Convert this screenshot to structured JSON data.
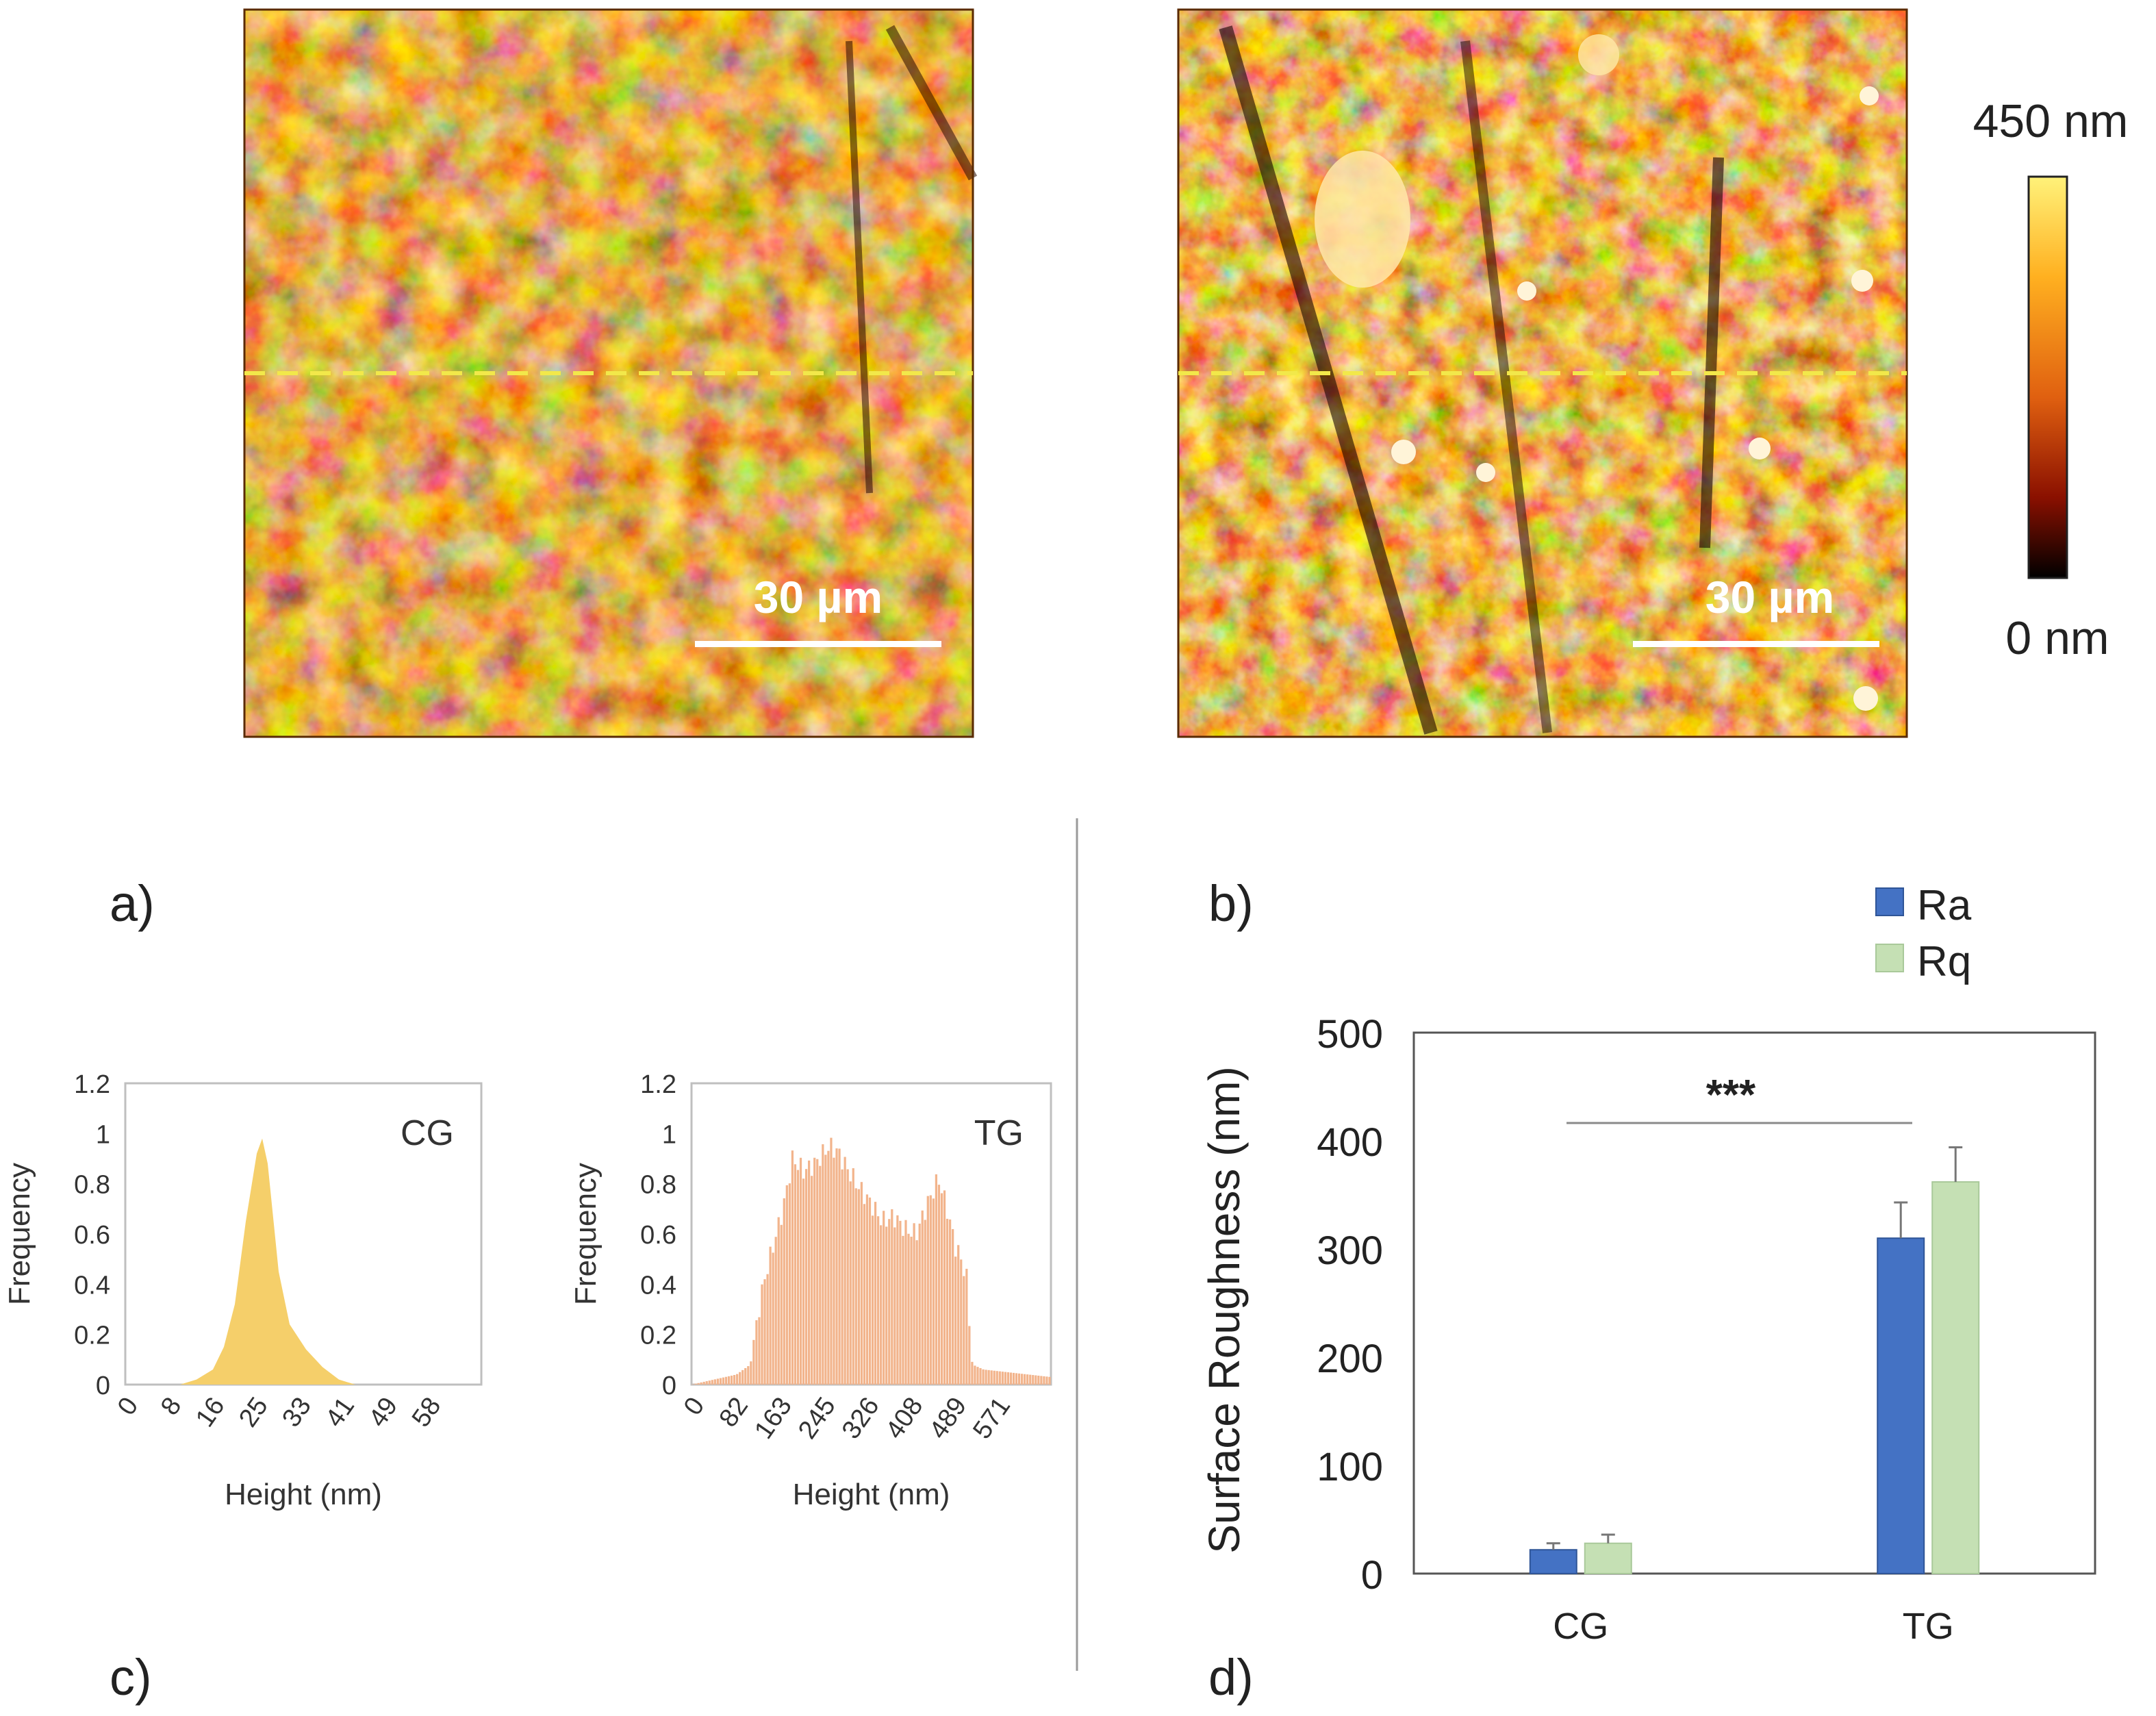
{
  "panels": {
    "a": "a)",
    "b": "b)",
    "c": "c)",
    "d": "d)"
  },
  "afm": {
    "scale_bar_label_left": "30 µm",
    "scale_bar_label_right": "30 µm",
    "colorbar_max": "450 nm",
    "colorbar_min": "0 nm"
  },
  "colors": {
    "afm_dark": "#2a0a00",
    "afm_mid": "#b8640a",
    "afm_bright": "#ffd890",
    "colorbar_top": "#fff27a",
    "colorbar_bottom": "#000000",
    "hist_cg": "#f5cf6a",
    "hist_tg": "#f2b48c",
    "ra": "#4472c4",
    "rq": "#c5e0b4"
  },
  "chart_data": [
    {
      "type": "area",
      "label": "CG",
      "xlabel": "Height (nm)",
      "ylabel": "Frequency",
      "xticks": [
        "0",
        "8",
        "16",
        "25",
        "33",
        "41",
        "49",
        "58"
      ],
      "yticks": [
        "0",
        "0.2",
        "0.4",
        "0.6",
        "0.8",
        "1",
        "1.2"
      ],
      "ylim": [
        0,
        1.2
      ],
      "xlim": [
        0,
        65
      ],
      "x": [
        0,
        10,
        13,
        16,
        18,
        20,
        22,
        24,
        25,
        26,
        28,
        30,
        33,
        36,
        39,
        42,
        65
      ],
      "y": [
        0,
        0,
        0.02,
        0.06,
        0.15,
        0.32,
        0.65,
        0.92,
        0.98,
        0.88,
        0.45,
        0.24,
        0.14,
        0.07,
        0.02,
        0,
        0
      ]
    },
    {
      "type": "bar",
      "label": "TG",
      "xlabel": "Height (nm)",
      "ylabel": "Frequency",
      "xticks": [
        "0",
        "82",
        "163",
        "245",
        "326",
        "408",
        "489",
        "571"
      ],
      "yticks": [
        "0",
        "0.2",
        "0.4",
        "0.6",
        "0.8",
        "1",
        "1.2"
      ],
      "ylim": [
        0,
        1.2
      ],
      "xlim": [
        0,
        640
      ],
      "x": [
        0,
        40,
        80,
        105,
        120,
        130,
        145,
        163,
        180,
        200,
        220,
        245,
        260,
        280,
        300,
        320,
        340,
        360,
        380,
        400,
        420,
        440,
        455,
        470,
        480,
        490,
        500,
        520,
        560,
        600,
        640
      ],
      "y": [
        0,
        0.02,
        0.04,
        0.08,
        0.3,
        0.42,
        0.55,
        0.7,
        0.9,
        0.85,
        0.88,
        0.95,
        0.93,
        0.85,
        0.78,
        0.72,
        0.65,
        0.67,
        0.62,
        0.6,
        0.72,
        0.82,
        0.7,
        0.55,
        0.5,
        0.42,
        0.08,
        0.06,
        0.05,
        0.04,
        0.03
      ]
    },
    {
      "type": "bar",
      "title": "",
      "xlabel": "",
      "ylabel": "Surface Roughness (nm)",
      "categories": [
        "CG",
        "TG"
      ],
      "ylim": [
        0,
        500
      ],
      "yticks": [
        "0",
        "100",
        "200",
        "300",
        "400",
        "500"
      ],
      "series": [
        {
          "name": "Ra",
          "values": [
            22,
            310
          ],
          "errors": [
            6,
            33
          ]
        },
        {
          "name": "Rq",
          "values": [
            28,
            362
          ],
          "errors": [
            8,
            32
          ]
        }
      ],
      "annotation": "***"
    }
  ]
}
